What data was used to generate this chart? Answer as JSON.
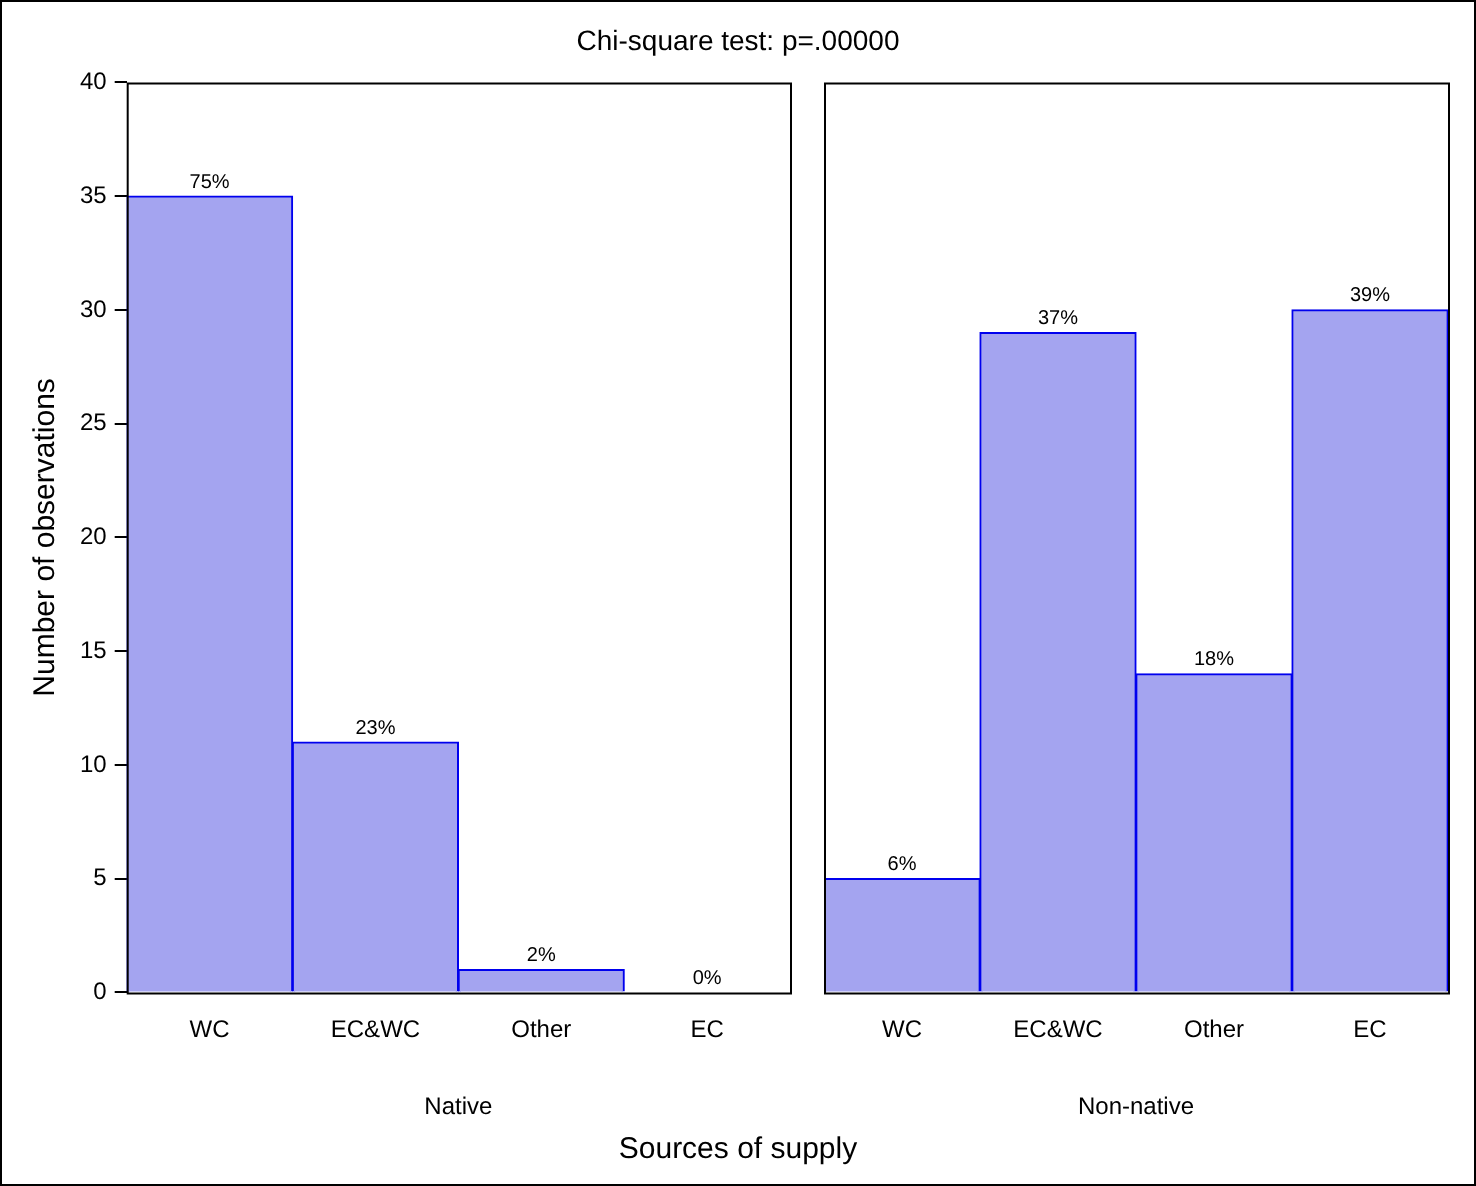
{
  "chart_data": [
    {
      "type": "bar",
      "title": "Chi-square test: p=.00000",
      "xlabel": "Native",
      "ylabel": "Number of observations",
      "annotations": [
        "Sources of supply",
        {
          "text": "75%",
          "x": "WC",
          "y": 35
        },
        {
          "text": "23%",
          "x": "EC&WC",
          "y": 11
        },
        {
          "text": "2%",
          "x": "Other",
          "y": 1
        },
        {
          "text": "0%",
          "x": "EC",
          "y": 0
        }
      ],
      "categories": [
        "WC",
        "EC&WC",
        "Other",
        "EC"
      ],
      "values": [
        35,
        11,
        1,
        0
      ],
      "color": "#a4a4f0",
      "ylim": [
        0,
        40
      ],
      "yticks": [
        0,
        5,
        10,
        15,
        20,
        25,
        30,
        35,
        40
      ],
      "grid": false,
      "legend": false
    },
    {
      "type": "bar",
      "xlabel": "Non-native",
      "annotations": [
        {
          "text": "6%",
          "x": "WC",
          "y": 5
        },
        {
          "text": "37%",
          "x": "EC&WC",
          "y": 29
        },
        {
          "text": "18%",
          "x": "Other",
          "y": 14
        },
        {
          "text": "39%",
          "x": "EC",
          "y": 30
        }
      ],
      "categories": [
        "WC",
        "EC&WC",
        "Other",
        "EC"
      ],
      "values": [
        5,
        29,
        14,
        30
      ],
      "color": "#a4a4f0",
      "ylim": [
        0,
        40
      ],
      "yticks": [
        0,
        5,
        10,
        15,
        20,
        25,
        30,
        35,
        40
      ],
      "tick_labels": "x",
      "grid": false,
      "legend": false
    }
  ]
}
